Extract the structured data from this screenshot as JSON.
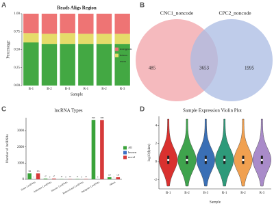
{
  "chart_data": [
    {
      "type": "stacked_bar",
      "panel": "A",
      "title": "Reads Aligs Region",
      "x_label": "Sample",
      "y_label": "Percentage",
      "categories": [
        "B-1",
        "B-2",
        "B-3",
        "R-1",
        "R-2",
        "R-3"
      ],
      "series": [
        {
          "name": "exon",
          "color": "#43a843",
          "values": [
            0.6,
            0.58,
            0.58,
            0.58,
            0.58,
            0.58
          ]
        },
        {
          "name": "intron",
          "color": "#e5dc6a",
          "values": [
            0.13,
            0.14,
            0.15,
            0.14,
            0.14,
            0.14
          ]
        },
        {
          "name": "intergenic",
          "color": "#ee7474",
          "values": [
            0.27,
            0.28,
            0.27,
            0.28,
            0.28,
            0.28
          ]
        }
      ],
      "ylim": [
        0,
        1
      ],
      "yticks": [
        {
          "value": 0,
          "label": "0.00"
        },
        0.25,
        {
          "value": 0.5,
          "label": "0.50"
        },
        0.75,
        {
          "value": 1,
          "label": "1.00"
        }
      ]
    },
    {
      "type": "venn",
      "panel": "B",
      "sets": [
        {
          "name": "CNC1_noncode",
          "color": "#f2a3a8"
        },
        {
          "name": "CPC2_noncode",
          "color": "#a9bbe3"
        }
      ],
      "values": [
        485,
        3653,
        1995
      ]
    },
    {
      "type": "grouped_bar",
      "panel": "C",
      "title": "lncRNA Types",
      "y_label": "Number of lncRNAs",
      "categories": [
        "Sense LncRNAs",
        "Antisense LncRNAs",
        "Intronic LncRNAs",
        "Bidirectional LncRNAs",
        "Intergenic LncRNAs",
        "Others"
      ],
      "series": [
        {
          "name": "All",
          "color": "#3aa33a",
          "values": [
            366,
            47,
            16,
            21,
            3665,
            129
          ]
        },
        {
          "name": "known",
          "color": "#3d6fc4",
          "values": [
            1,
            0,
            0,
            0,
            5,
            1
          ]
        },
        {
          "name": "novel",
          "color": "#d63a3a",
          "values": [
            365,
            47,
            16,
            21,
            3660,
            128
          ]
        }
      ],
      "ylim": [
        0,
        3800
      ],
      "yticks": [
        0,
        1000,
        2000,
        3000
      ]
    },
    {
      "type": "violin",
      "panel": "D",
      "title": "Sample Expression Violin Plot",
      "x_label": "Sample",
      "y_label": "log10(fpkm)",
      "categories": [
        "B-1",
        "B-2",
        "B-3",
        "R-1",
        "R-2",
        "R-3"
      ],
      "colors": [
        "#d9312f",
        "#3fa34d",
        "#3a6fb5",
        "#2e9a7a",
        "#f0a050",
        "#a98bc9"
      ],
      "medians": [
        0.2,
        0.2,
        0.2,
        0.2,
        0.2,
        0.2
      ],
      "ylim": [
        -3,
        5
      ],
      "yticks": [
        -2,
        0,
        2,
        4
      ]
    }
  ]
}
